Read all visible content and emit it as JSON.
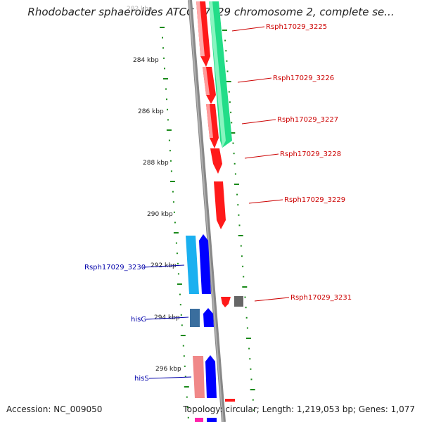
{
  "title": "Rhodobacter sphaeroides ATCC 17029 chromosome 2, complete se...",
  "ruler": {
    "labels": [
      "282 kbp",
      "284 kbp",
      "286 kbp",
      "288 kbp",
      "290 kbp",
      "292 kbp",
      "294 kbp",
      "296 kbp"
    ],
    "color": "#1a8a1a"
  },
  "backbone_color": "#888888",
  "genes_right": [
    {
      "label": "Rsph17029_3225",
      "color": "#ff1a1a"
    },
    {
      "label": "Rsph17029_3226",
      "color": "#ff1a1a"
    },
    {
      "label": "Rsph17029_3227",
      "color": "#ff1a1a"
    },
    {
      "label": "Rsph17029_3228",
      "color": "#ff1a1a"
    },
    {
      "label": "Rsph17029_3229",
      "color": "#ff1a1a"
    },
    {
      "label": "Rsph17029_3231",
      "color": "#ff1a1a"
    }
  ],
  "genes_left": [
    {
      "label": "Rsph17029_3230",
      "color": "#0000cc"
    },
    {
      "label": "hisG",
      "color": "#0000cc"
    },
    {
      "label": "hisS",
      "color": "#0000cc"
    }
  ],
  "feature_colors": {
    "cds_forward": "#ff1a1a",
    "cds_reverse": "#0000ff",
    "rna_green": "#22dd88",
    "light_blue": "#1ab0f0",
    "steel_blue": "#3a6e9e",
    "pink": "#f08888",
    "gray": "#666666"
  },
  "footer": {
    "accession": "Accession: NC_009050",
    "summary": "Topology: circular; Length: 1,219,053 bp; Genes: 1,077"
  }
}
